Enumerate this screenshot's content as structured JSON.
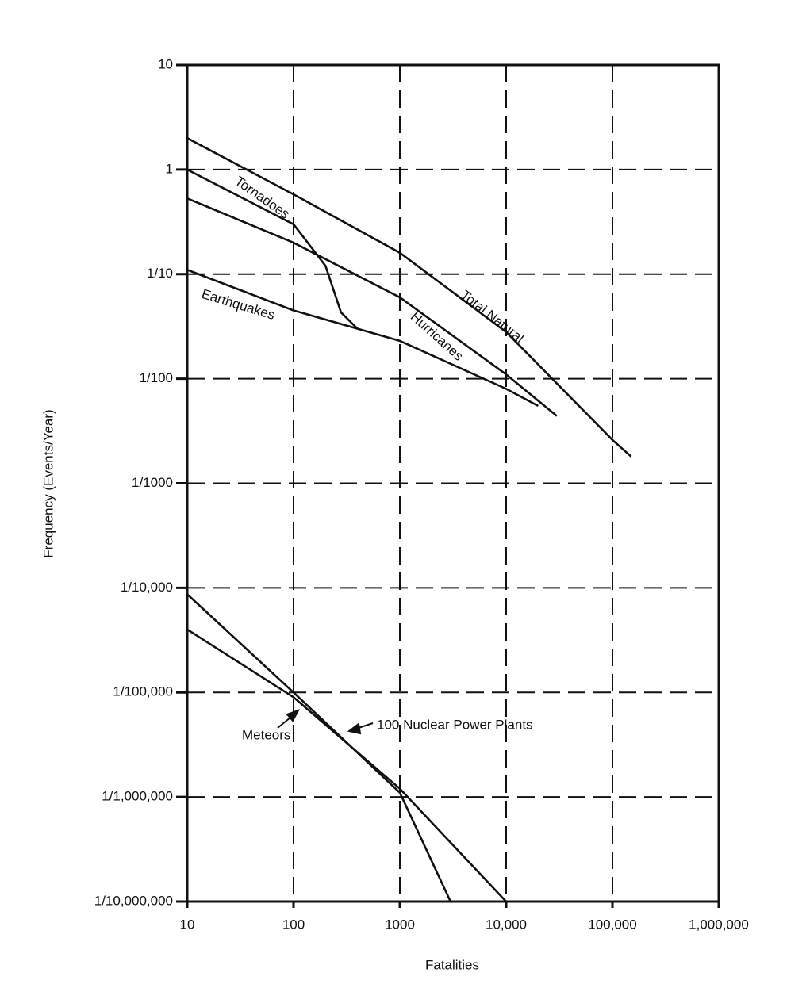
{
  "chart_data": {
    "type": "line",
    "xlabel": "Fatalities",
    "ylabel": "Frequency (Events/Year)",
    "xscale": "log",
    "yscale": "log",
    "grid": true,
    "xlim": [
      10,
      1000000
    ],
    "ylim": [
      1e-07,
      10
    ],
    "xticks": [
      10,
      100,
      1000,
      {
        "value": 10000,
        "label": "10,000"
      },
      {
        "value": 100000,
        "label": "100,000"
      },
      {
        "value": 1000000,
        "label": "1,000,000"
      }
    ],
    "yticks": [
      10,
      1,
      {
        "value": 0.1,
        "label": "1/10"
      },
      {
        "value": 0.01,
        "label": "1/100"
      },
      {
        "value": 0.001,
        "label": "1/1000"
      },
      {
        "value": 0.0001,
        "label": "1/10,000"
      },
      {
        "value": 1e-05,
        "label": "1/100,000"
      },
      {
        "value": 1e-06,
        "label": "1/1,000,000"
      },
      {
        "value": 1e-07,
        "label": "1/10,000,000"
      }
    ],
    "series": [
      {
        "name": "Total Natural",
        "color": "#111111",
        "x": [
          10,
          100,
          1000,
          10000,
          100000,
          150000
        ],
        "values": [
          2,
          0.58,
          0.16,
          0.028,
          0.0026,
          0.0018
        ]
      },
      {
        "name": "Hurricanes",
        "color": "#111111",
        "x": [
          10,
          100,
          1000,
          10000,
          30000
        ],
        "values": [
          0.53,
          0.2,
          0.06,
          0.011,
          0.0044
        ]
      },
      {
        "name": "Tornadoes",
        "color": "#111111",
        "x": [
          10,
          100,
          200,
          280,
          400
        ],
        "values": [
          1,
          0.3,
          0.12,
          0.043,
          0.03
        ]
      },
      {
        "name": "Earthquakes",
        "color": "#111111",
        "x": [
          10,
          100,
          1000,
          10000,
          20000
        ],
        "values": [
          0.11,
          0.045,
          0.023,
          0.008,
          0.0055
        ]
      },
      {
        "name": "Meteors",
        "color": "#111111",
        "x": [
          10,
          100,
          1000,
          10000
        ],
        "values": [
          4e-05,
          9e-06,
          1.2e-06,
          1e-07
        ]
      },
      {
        "name": "100 Nuclear Power Plants",
        "color": "#111111",
        "x": [
          10,
          100,
          1000,
          3000
        ],
        "values": [
          8.7e-05,
          1e-05,
          1.1e-06,
          1e-07
        ]
      }
    ]
  }
}
